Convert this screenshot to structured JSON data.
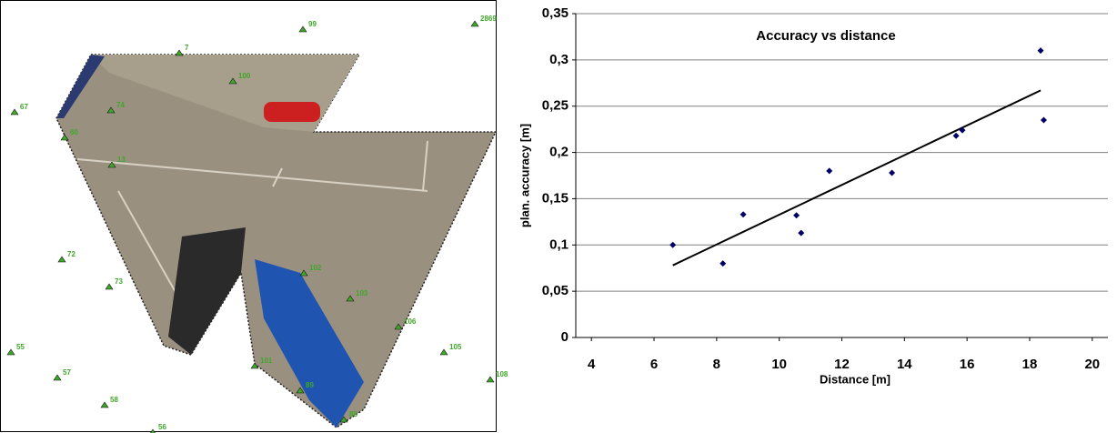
{
  "image_labels": [
    "67",
    "7",
    "100",
    "74",
    "60",
    "13",
    "72",
    "73",
    "99",
    "2869",
    "102",
    "103",
    "106",
    "105",
    "101",
    "108",
    "55",
    "57",
    "58",
    "56",
    "89",
    "88"
  ],
  "chart_data": {
    "type": "scatter",
    "title": "Accuracy vs distance",
    "x_label": "Distance [m]",
    "y_label": "plan. accuracy [m]",
    "x": [
      6.6,
      8.2,
      8.85,
      10.55,
      10.7,
      11.6,
      13.6,
      15.65,
      15.85,
      18.35,
      18.45
    ],
    "values": [
      0.1,
      0.08,
      0.133,
      0.132,
      0.113,
      0.18,
      0.178,
      0.218,
      0.224,
      0.31,
      0.235
    ],
    "color": "#000066",
    "trendline": {
      "x": [
        6.6,
        18.35
      ],
      "values": [
        0.078,
        0.267
      ],
      "color": "#000000"
    },
    "xlim": [
      3.5,
      20.5
    ],
    "xticks": [
      4,
      6,
      8,
      10,
      12,
      14,
      16,
      18,
      20
    ],
    "ylim": [
      0,
      0.35
    ],
    "yticks": [
      0,
      {
        "value": 0.05,
        "label": "0,05"
      },
      {
        "value": 0.1,
        "label": "0,1"
      },
      {
        "value": 0.15,
        "label": "0,15"
      },
      {
        "value": 0.2,
        "label": "0,2"
      },
      {
        "value": 0.25,
        "label": "0,25"
      },
      {
        "value": 0.3,
        "label": "0,3"
      },
      {
        "value": 0.35,
        "label": "0,35"
      }
    ],
    "grid": true
  }
}
